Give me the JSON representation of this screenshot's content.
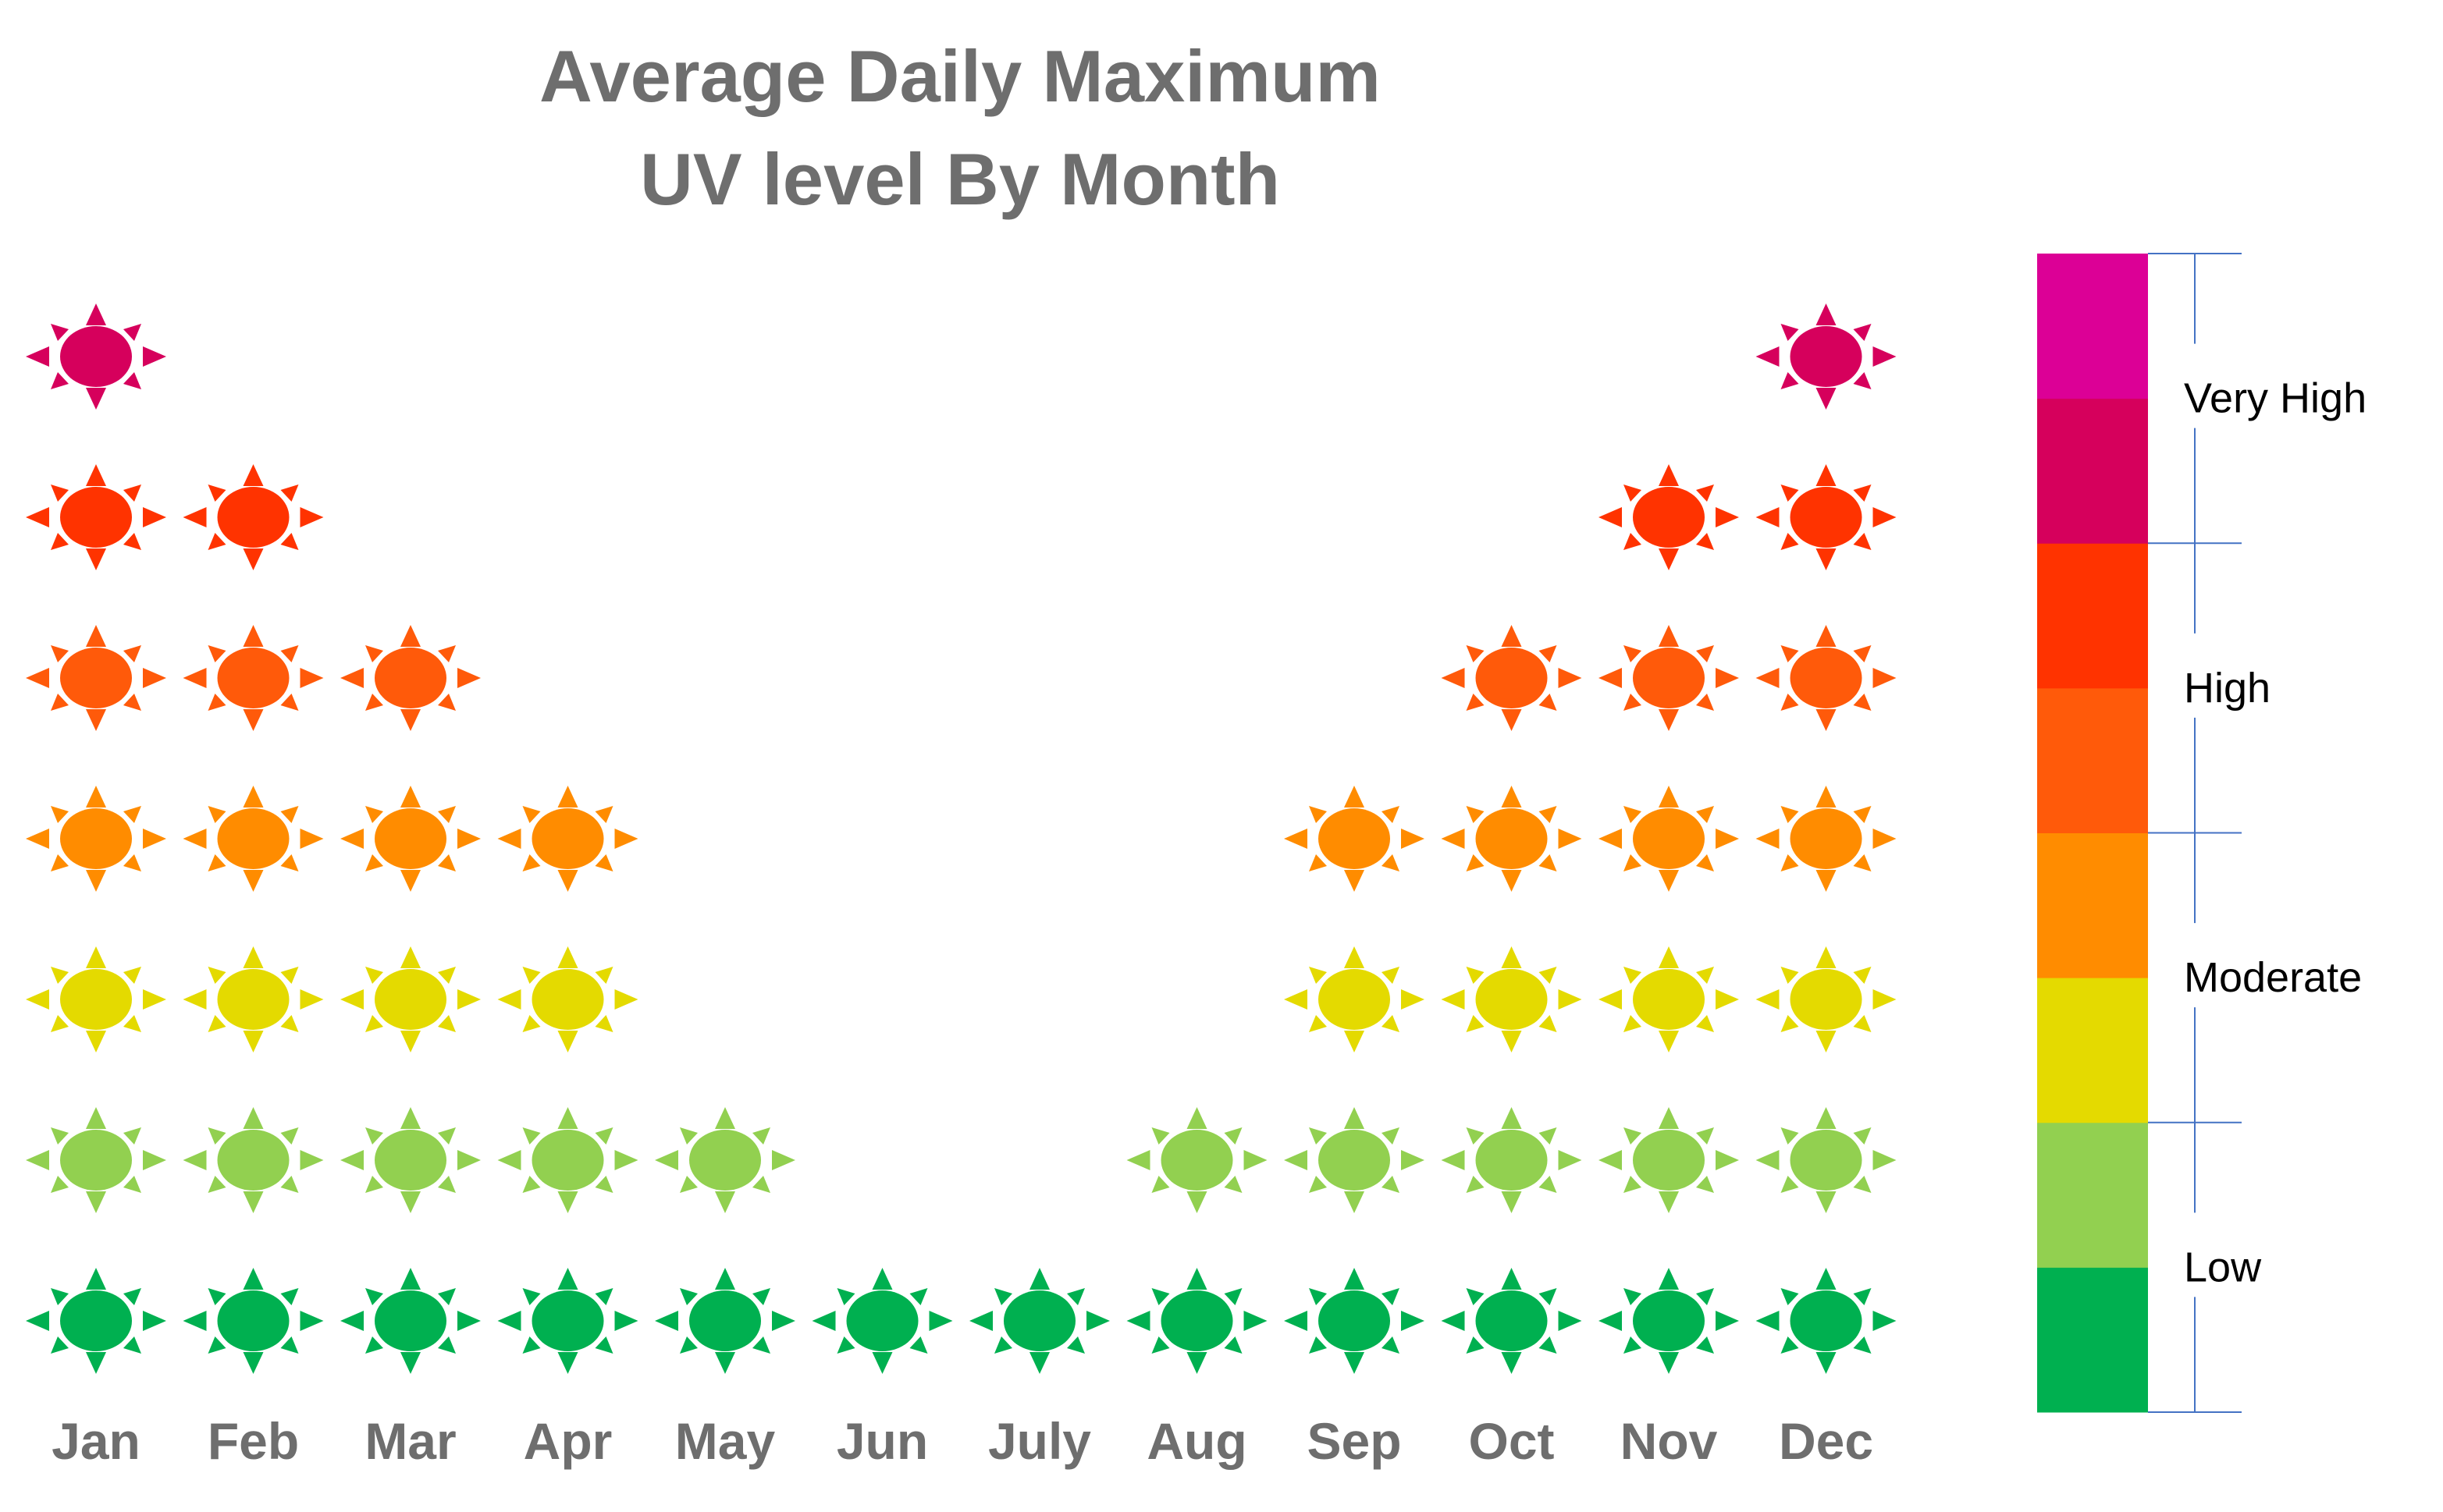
{
  "chart_data": {
    "type": "pictogram",
    "title": [
      "Average Daily Maximum",
      "UV level By Month"
    ],
    "categories": [
      "Jan",
      "Feb",
      "Mar",
      "Apr",
      "May",
      "Jun",
      "July",
      "Aug",
      "Sep",
      "Oct",
      "Nov",
      "Dec"
    ],
    "values": [
      7,
      6.2,
      5.1,
      4.1,
      2,
      1.1,
      1.2,
      2.1,
      4,
      5.2,
      6.1,
      7.7
    ],
    "level_colors": [
      "#00b050",
      "#92d050",
      "#e4da00",
      "#ff8c00",
      "#ff5a0a",
      "#ff3300",
      "#d6005c",
      "#dc0096"
    ],
    "legend": {
      "position": "right",
      "bands": [
        {
          "label": "Low",
          "from": 0,
          "to": 2
        },
        {
          "label": "Moderate",
          "from": 2,
          "to": 4
        },
        {
          "label": "High",
          "from": 4,
          "to": 6
        },
        {
          "label": "Very High",
          "from": 6,
          "to": 8
        }
      ]
    }
  }
}
